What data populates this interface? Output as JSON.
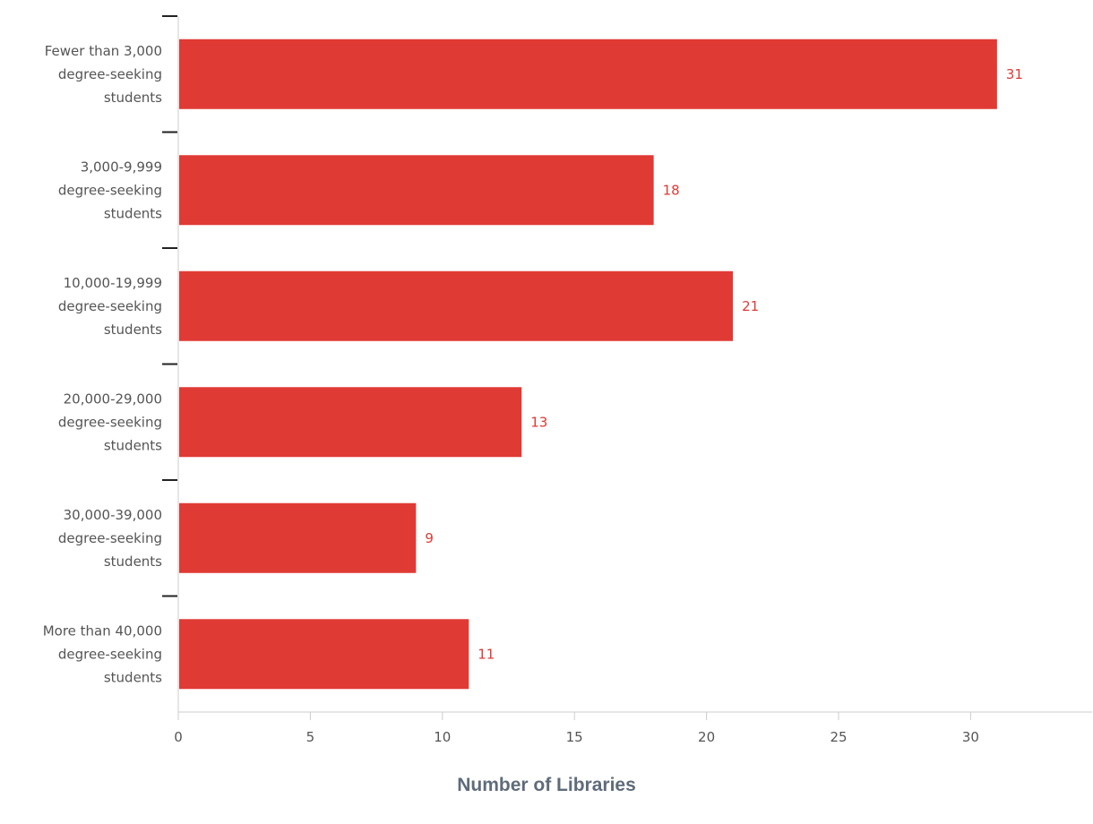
{
  "chart_data": {
    "type": "bar",
    "orientation": "horizontal",
    "categories": [
      [
        "Fewer than 3,000",
        "degree-seeking",
        "students"
      ],
      [
        "3,000-9,999",
        "degree-seeking",
        "students"
      ],
      [
        "10,000-19,999",
        "degree-seeking",
        "students"
      ],
      [
        "20,000-29,000",
        "degree-seeking",
        "students"
      ],
      [
        "30,000-39,000",
        "degree-seeking",
        "students"
      ],
      [
        "More than 40,000",
        "degree-seeking",
        "students"
      ]
    ],
    "values": [
      31,
      18,
      21,
      13,
      9,
      11
    ],
    "xlabel": "Number of Libraries",
    "ylabel": "",
    "title": "",
    "xlim": [
      0,
      34.6
    ],
    "xticks": [
      0,
      5,
      10,
      15,
      20,
      25,
      30
    ],
    "grid": false,
    "data_labels": true,
    "colors": {
      "bar": "#e03a35",
      "value_label": "#e03a35",
      "axis": "#cccccc",
      "text": "#555555"
    }
  }
}
